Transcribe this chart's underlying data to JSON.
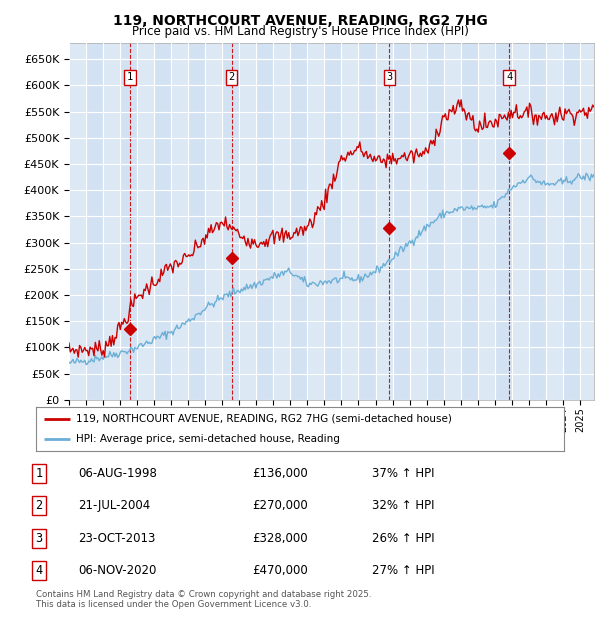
{
  "title": "119, NORTHCOURT AVENUE, READING, RG2 7HG",
  "subtitle": "Price paid vs. HM Land Registry's House Price Index (HPI)",
  "ylim": [
    0,
    680000
  ],
  "yticks": [
    0,
    50000,
    100000,
    150000,
    200000,
    250000,
    300000,
    350000,
    400000,
    450000,
    500000,
    550000,
    600000,
    650000
  ],
  "xlim_start": 1995.0,
  "xlim_end": 2025.83,
  "sale_dates": [
    1998.59,
    2004.55,
    2013.81,
    2020.85
  ],
  "sale_prices": [
    136000,
    270000,
    328000,
    470000
  ],
  "sale_labels": [
    "1",
    "2",
    "3",
    "4"
  ],
  "hpi_color": "#6baed6",
  "price_color": "#cc0000",
  "vline_color": "#cc0000",
  "background_color": "#dce9f5",
  "alt_col_color": "#e8f0f8",
  "legend_entries": [
    "119, NORTHCOURT AVENUE, READING, RG2 7HG (semi-detached house)",
    "HPI: Average price, semi-detached house, Reading"
  ],
  "table_data": [
    [
      "1",
      "06-AUG-1998",
      "£136,000",
      "37% ↑ HPI"
    ],
    [
      "2",
      "21-JUL-2004",
      "£270,000",
      "32% ↑ HPI"
    ],
    [
      "3",
      "23-OCT-2013",
      "£328,000",
      "26% ↑ HPI"
    ],
    [
      "4",
      "06-NOV-2020",
      "£470,000",
      "27% ↑ HPI"
    ]
  ],
  "footnote": "Contains HM Land Registry data © Crown copyright and database right 2025.\nThis data is licensed under the Open Government Licence v3.0.",
  "hpi_base": [
    70000,
    75000,
    82000,
    90000,
    100000,
    115000,
    130000,
    150000,
    175000,
    195000,
    210000,
    220000,
    235000,
    245000,
    220000,
    225000,
    230000,
    230000,
    245000,
    270000,
    300000,
    330000,
    355000,
    365000,
    365000,
    370000,
    405000,
    425000,
    410000,
    415000,
    425000
  ],
  "price_base": [
    95000,
    96000,
    97000,
    136000,
    195000,
    225000,
    255000,
    270000,
    310000,
    340000,
    315000,
    300000,
    310000,
    315000,
    328000,
    380000,
    460000,
    480000,
    455000,
    460000,
    465000,
    470000,
    540000,
    560000,
    520000,
    530000,
    550000,
    545000,
    540000,
    545000,
    550000
  ]
}
